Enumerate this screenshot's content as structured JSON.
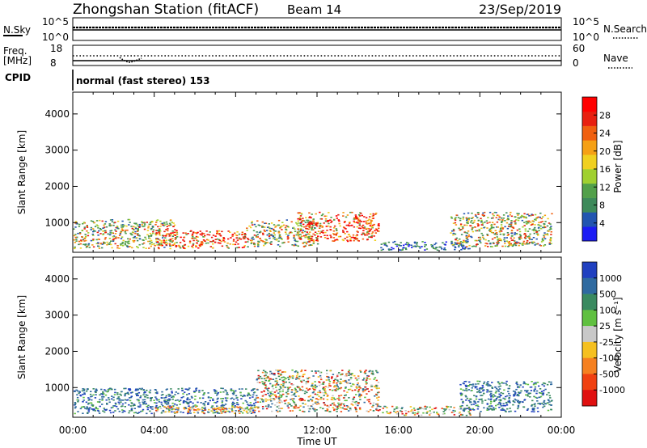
{
  "header": {
    "station": "Zhongshan Station (fitACF)",
    "beam": "Beam 14",
    "date": "23/Sep/2019"
  },
  "noise_panel": {
    "left_label": "N.Sky",
    "left_ticks": [
      "10^5",
      "10^0"
    ],
    "right_label": "N.Search",
    "right_ticks": [
      "10^5",
      "10^0"
    ]
  },
  "freq_panel": {
    "label_line1": "Freq.",
    "label_line2": "[MHz]",
    "left_ticks": [
      "18",
      "8"
    ],
    "right_label": "Nave",
    "right_ticks": [
      "60",
      "0"
    ]
  },
  "cpid": {
    "label": "CPID",
    "value": "normal (fast stereo) 153"
  },
  "chart_data": [
    {
      "type": "heatmap",
      "name": "Power",
      "ylabel": "Slant Range [km]",
      "xlabel": "Time UT",
      "x_ticks": [
        "00:00",
        "04:00",
        "08:00",
        "12:00",
        "16:00",
        "20:00",
        "00:00"
      ],
      "x_range_hours": [
        0,
        24
      ],
      "y_ticks": [
        1000,
        2000,
        3000,
        4000
      ],
      "ylim": [
        180,
        4600
      ],
      "colorbar": {
        "label": "Power [dB]",
        "ticks": [
          "4",
          "8",
          "12",
          "16",
          "20",
          "24",
          "28"
        ],
        "colors": [
          "#1c1cf4",
          "#2255b0",
          "#3d8a5a",
          "#52a04a",
          "#a0d030",
          "#f0d020",
          "#f5a015",
          "#f06010",
          "#e82010",
          "#ff0000"
        ]
      },
      "echo_regions": [
        {
          "t_start": 0.0,
          "t_end": 5.0,
          "r_start": 300,
          "r_end": 1100,
          "level": "medium"
        },
        {
          "t_start": 4.0,
          "t_end": 8.5,
          "r_start": 300,
          "r_end": 800,
          "level": "high"
        },
        {
          "t_start": 8.5,
          "t_end": 12.0,
          "r_start": 350,
          "r_end": 1100,
          "level": "medium"
        },
        {
          "t_start": 11.0,
          "t_end": 15.0,
          "r_start": 500,
          "r_end": 1300,
          "level": "high"
        },
        {
          "t_start": 15.0,
          "t_end": 19.5,
          "r_start": 250,
          "r_end": 500,
          "level": "low"
        },
        {
          "t_start": 18.5,
          "t_end": 23.5,
          "r_start": 350,
          "r_end": 1300,
          "level": "medium"
        }
      ]
    },
    {
      "type": "heatmap",
      "name": "Velocity",
      "ylabel": "Slant Range [km]",
      "xlabel": "Time UT",
      "x_ticks": [
        "00:00",
        "04:00",
        "08:00",
        "12:00",
        "16:00",
        "20:00",
        "00:00"
      ],
      "x_range_hours": [
        0,
        24
      ],
      "y_ticks": [
        1000,
        2000,
        3000,
        4000
      ],
      "ylim": [
        180,
        4600
      ],
      "colorbar": {
        "label": "Velocity [m s⁻¹]",
        "ticks": [
          "1000",
          "500",
          "100",
          "25",
          "-25",
          "-100",
          "-500",
          "-1000"
        ],
        "colors": [
          "#2040c0",
          "#2f6aa0",
          "#3a8a60",
          "#60c040",
          "#c8c8c8",
          "#f5c020",
          "#f58020",
          "#f04010",
          "#e01010"
        ]
      },
      "echo_regions": [
        {
          "t_start": 0.0,
          "t_end": 9.0,
          "r_start": 300,
          "r_end": 1000,
          "level": "positive"
        },
        {
          "t_start": 4.0,
          "t_end": 9.0,
          "r_start": 300,
          "r_end": 500,
          "level": "negative"
        },
        {
          "t_start": 9.0,
          "t_end": 15.0,
          "r_start": 350,
          "r_end": 1500,
          "level": "mixed"
        },
        {
          "t_start": 15.0,
          "t_end": 19.5,
          "r_start": 250,
          "r_end": 500,
          "level": "mixed"
        },
        {
          "t_start": 19.0,
          "t_end": 23.5,
          "r_start": 350,
          "r_end": 1200,
          "level": "positive"
        }
      ]
    }
  ]
}
